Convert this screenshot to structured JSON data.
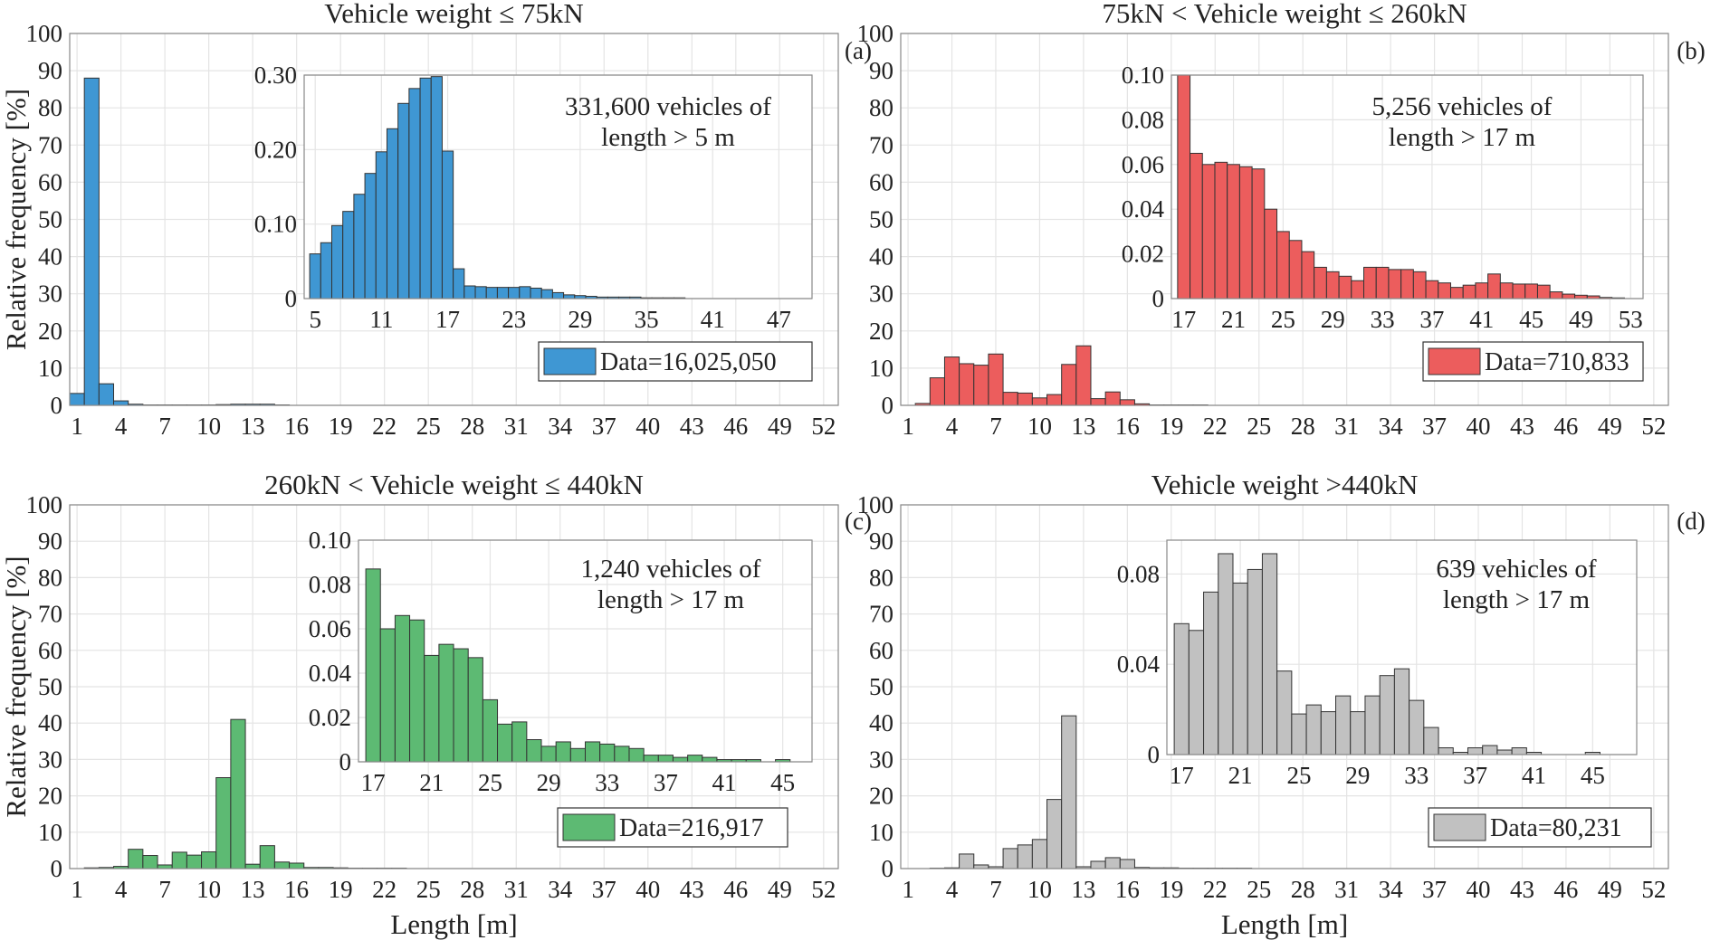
{
  "chart_data": [
    {
      "type": "bar",
      "panel": "(a)",
      "title": "Vehicle weight ≤ 75kN",
      "xlabel": "",
      "ylabel": "Relative frequency [%]",
      "x": [
        1,
        2,
        3,
        4,
        5,
        6,
        7,
        8,
        9,
        10,
        11,
        12,
        13,
        14,
        15,
        16,
        17,
        18,
        19,
        20,
        21,
        22,
        23,
        24,
        25,
        26,
        27,
        28,
        29,
        30,
        31,
        32,
        33,
        34,
        35,
        36,
        37,
        38,
        39,
        40,
        41,
        42,
        43,
        44,
        45,
        46,
        47,
        48,
        49,
        50,
        51,
        52
      ],
      "values": [
        3.2,
        88,
        5.8,
        1.2,
        0.3,
        0.1,
        0.1,
        0.1,
        0.1,
        0.1,
        0.2,
        0.3,
        0.3,
        0.3,
        0.1,
        0,
        0,
        0,
        0,
        0,
        0,
        0,
        0,
        0,
        0,
        0,
        0,
        0,
        0,
        0,
        0,
        0,
        0,
        0,
        0,
        0,
        0,
        0,
        0,
        0,
        0,
        0,
        0,
        0,
        0,
        0,
        0,
        0,
        0,
        0,
        0,
        0
      ],
      "xticks": [
        1,
        4,
        7,
        10,
        13,
        16,
        19,
        22,
        25,
        28,
        31,
        34,
        37,
        40,
        43,
        46,
        49,
        52
      ],
      "yticks": [
        0,
        10,
        20,
        30,
        40,
        50,
        60,
        70,
        80,
        90,
        100
      ],
      "ylim": [
        0,
        100
      ],
      "xlim": [
        0.5,
        53
      ],
      "color": "#3f97d3",
      "grid": true,
      "legend": "Data=16,025,050",
      "legend_position": "bottom-right",
      "inset": {
        "annotation_lines": [
          "331,600 vehicles of",
          "length > 5 m"
        ],
        "x": [
          5,
          6,
          7,
          8,
          9,
          10,
          11,
          12,
          13,
          14,
          15,
          16,
          17,
          18,
          19,
          20,
          21,
          22,
          23,
          24,
          25,
          26,
          27,
          28,
          29,
          30,
          31,
          32,
          33,
          34,
          35,
          36,
          37,
          38,
          39,
          40,
          41,
          42,
          43,
          44,
          45,
          46,
          47,
          48
        ],
        "values": [
          0.06,
          0.075,
          0.098,
          0.117,
          0.14,
          0.168,
          0.197,
          0.228,
          0.262,
          0.282,
          0.296,
          0.298,
          0.198,
          0.04,
          0.017,
          0.016,
          0.015,
          0.015,
          0.015,
          0.016,
          0.014,
          0.012,
          0.008,
          0.005,
          0.004,
          0.003,
          0.002,
          0.002,
          0.002,
          0.002,
          0.001,
          0.001,
          0.001,
          0.001,
          0,
          0,
          0,
          0,
          0,
          0,
          0,
          0,
          0,
          0
        ],
        "xticks": [
          5,
          11,
          17,
          23,
          29,
          35,
          41,
          47
        ],
        "yticks": [
          0,
          0.1,
          0.2,
          0.3
        ],
        "ytick_labels": [
          "0",
          "0.10",
          "0.20",
          "0.30"
        ],
        "ylim": [
          0,
          0.3
        ],
        "xlim": [
          4,
          50
        ]
      }
    },
    {
      "type": "bar",
      "panel": "(b)",
      "title": "75kN < Vehicle weight ≤ 260kN",
      "xlabel": "",
      "ylabel": "",
      "x": [
        1,
        2,
        3,
        4,
        5,
        6,
        7,
        8,
        9,
        10,
        11,
        12,
        13,
        14,
        15,
        16,
        17,
        18,
        19,
        20,
        21,
        22,
        23,
        24,
        25,
        26,
        27,
        28,
        29,
        30,
        31,
        32,
        33,
        34,
        35,
        36,
        37,
        38,
        39,
        40,
        41,
        42,
        43,
        44,
        45,
        46,
        47,
        48,
        49,
        50,
        51,
        52
      ],
      "values": [
        0,
        0.5,
        7.4,
        13,
        11.2,
        10.8,
        13.8,
        3.5,
        3.3,
        2,
        2.9,
        11,
        16,
        1.8,
        3.6,
        1.5,
        0.4,
        0.1,
        0.1,
        0.1,
        0.1,
        0,
        0,
        0,
        0,
        0,
        0,
        0,
        0,
        0,
        0,
        0,
        0,
        0,
        0,
        0,
        0,
        0,
        0,
        0,
        0,
        0,
        0,
        0,
        0,
        0,
        0,
        0,
        0,
        0,
        0,
        0
      ],
      "xticks": [
        1,
        4,
        7,
        10,
        13,
        16,
        19,
        22,
        25,
        28,
        31,
        34,
        37,
        40,
        43,
        46,
        49,
        52
      ],
      "yticks": [
        0,
        10,
        20,
        30,
        40,
        50,
        60,
        70,
        80,
        90,
        100
      ],
      "ylim": [
        0,
        100
      ],
      "xlim": [
        0.5,
        53
      ],
      "color": "#ec5d5d",
      "grid": true,
      "legend": "Data=710,833",
      "legend_position": "bottom-right",
      "inset": {
        "annotation_lines": [
          "5,256 vehicles of",
          "length > 17 m"
        ],
        "x": [
          17,
          18,
          19,
          20,
          21,
          22,
          23,
          24,
          25,
          26,
          27,
          28,
          29,
          30,
          31,
          32,
          33,
          34,
          35,
          36,
          37,
          38,
          39,
          40,
          41,
          42,
          43,
          44,
          45,
          46,
          47,
          48,
          49,
          50,
          51,
          52
        ],
        "values": [
          0.1,
          0.065,
          0.06,
          0.061,
          0.06,
          0.059,
          0.058,
          0.04,
          0.03,
          0.026,
          0.021,
          0.014,
          0.012,
          0.01,
          0.008,
          0.014,
          0.014,
          0.013,
          0.013,
          0.012,
          0.008,
          0.007,
          0.005,
          0.006,
          0.007,
          0.011,
          0.007,
          0.0065,
          0.0065,
          0.006,
          0.003,
          0.002,
          0.0015,
          0.0012,
          0.0005,
          0.0003
        ],
        "xticks": [
          17,
          21,
          25,
          29,
          33,
          37,
          41,
          45,
          49,
          53
        ],
        "yticks": [
          0,
          0.02,
          0.04,
          0.06,
          0.08,
          0.1
        ],
        "ytick_labels": [
          "0",
          "0.02",
          "0.04",
          "0.06",
          "0.08",
          "0.10"
        ],
        "ylim": [
          0,
          0.1
        ],
        "xlim": [
          16,
          54
        ]
      }
    },
    {
      "type": "bar",
      "panel": "(c)",
      "title": "260kN < Vehicle weight ≤ 440kN",
      "xlabel": "Length [m]",
      "ylabel": "Relative frequency [%]",
      "x": [
        1,
        2,
        3,
        4,
        5,
        6,
        7,
        8,
        9,
        10,
        11,
        12,
        13,
        14,
        15,
        16,
        17,
        18,
        19,
        20,
        21,
        22,
        23,
        24,
        25,
        26,
        27,
        28,
        29,
        30,
        31,
        32,
        33,
        34,
        35,
        36,
        37,
        38,
        39,
        40,
        41,
        42,
        43,
        44,
        45,
        46,
        47,
        48,
        49,
        50,
        51,
        52
      ],
      "values": [
        0,
        0.2,
        0.3,
        0.6,
        5.3,
        3.6,
        1,
        4.5,
        3.7,
        4.6,
        25,
        41,
        1.2,
        6.3,
        1.8,
        1.5,
        0.3,
        0.3,
        0.2,
        0.1,
        0.1,
        0.1,
        0.1,
        0,
        0,
        0,
        0,
        0,
        0,
        0,
        0,
        0,
        0,
        0,
        0,
        0,
        0,
        0,
        0,
        0,
        0,
        0,
        0,
        0,
        0,
        0,
        0,
        0,
        0,
        0,
        0,
        0
      ],
      "xticks": [
        1,
        4,
        7,
        10,
        13,
        16,
        19,
        22,
        25,
        28,
        31,
        34,
        37,
        40,
        43,
        46,
        49,
        52
      ],
      "yticks": [
        0,
        10,
        20,
        30,
        40,
        50,
        60,
        70,
        80,
        90,
        100
      ],
      "ylim": [
        0,
        100
      ],
      "xlim": [
        0.5,
        53
      ],
      "color": "#5dba73",
      "grid": true,
      "legend": "Data=216,917",
      "legend_position": "bottom-right",
      "inset": {
        "annotation_lines": [
          "1,240 vehicles of",
          "length > 17 m"
        ],
        "x": [
          17,
          18,
          19,
          20,
          21,
          22,
          23,
          24,
          25,
          26,
          27,
          28,
          29,
          30,
          31,
          32,
          33,
          34,
          35,
          36,
          37,
          38,
          39,
          40,
          41,
          42,
          43,
          44,
          45,
          46
        ],
        "values": [
          0.087,
          0.06,
          0.066,
          0.064,
          0.048,
          0.053,
          0.051,
          0.047,
          0.028,
          0.017,
          0.018,
          0.01,
          0.007,
          0.009,
          0.006,
          0.009,
          0.008,
          0.007,
          0.006,
          0.003,
          0.003,
          0.002,
          0.003,
          0.002,
          0.001,
          0.001,
          0.001,
          0,
          0.001,
          0
        ],
        "xticks": [
          17,
          21,
          25,
          29,
          33,
          37,
          41,
          45
        ],
        "yticks": [
          0,
          0.02,
          0.04,
          0.06,
          0.08,
          0.1
        ],
        "ytick_labels": [
          "0",
          "0.02",
          "0.04",
          "0.06",
          "0.08",
          "0.10"
        ],
        "ylim": [
          0,
          0.1
        ],
        "xlim": [
          16,
          47
        ]
      }
    },
    {
      "type": "bar",
      "panel": "(d)",
      "title": "Vehicle weight >440kN",
      "xlabel": "Length [m]",
      "ylabel": "",
      "x": [
        1,
        2,
        3,
        4,
        5,
        6,
        7,
        8,
        9,
        10,
        11,
        12,
        13,
        14,
        15,
        16,
        17,
        18,
        19,
        20,
        21,
        22,
        23,
        24,
        25,
        26,
        27,
        28,
        29,
        30,
        31,
        32,
        33,
        34,
        35,
        36,
        37,
        38,
        39,
        40,
        41,
        42,
        43,
        44,
        45,
        46,
        47,
        48,
        49,
        50,
        51,
        52
      ],
      "values": [
        0,
        0,
        0.1,
        0.2,
        4,
        1,
        0.5,
        5.5,
        6.5,
        8,
        19,
        42,
        0.5,
        2,
        3,
        2.5,
        0.3,
        0.2,
        0.2,
        0.1,
        0.1,
        0.1,
        0.1,
        0.1,
        0,
        0,
        0,
        0,
        0,
        0,
        0,
        0,
        0,
        0,
        0,
        0,
        0,
        0,
        0,
        0,
        0,
        0,
        0,
        0,
        0,
        0,
        0,
        0,
        0,
        0,
        0,
        0
      ],
      "xticks": [
        1,
        4,
        7,
        10,
        13,
        16,
        19,
        22,
        25,
        28,
        31,
        34,
        37,
        40,
        43,
        46,
        49,
        52
      ],
      "yticks": [
        0,
        10,
        20,
        30,
        40,
        50,
        60,
        70,
        80,
        90,
        100
      ],
      "ylim": [
        0,
        100
      ],
      "xlim": [
        0.5,
        53
      ],
      "color": "#c1c1c1",
      "grid": true,
      "legend": "Data=80,231",
      "legend_position": "bottom-right",
      "inset": {
        "annotation_lines": [
          "639 vehicles of",
          "length > 17 m"
        ],
        "x": [
          17,
          18,
          19,
          20,
          21,
          22,
          23,
          24,
          25,
          26,
          27,
          28,
          29,
          30,
          31,
          32,
          33,
          34,
          35,
          36,
          37,
          38,
          39,
          40,
          41,
          42,
          43,
          44,
          45,
          46
        ],
        "values": [
          0.058,
          0.055,
          0.072,
          0.089,
          0.076,
          0.082,
          0.089,
          0.037,
          0.018,
          0.022,
          0.019,
          0.026,
          0.019,
          0.026,
          0.035,
          0.038,
          0.024,
          0.012,
          0.003,
          0.001,
          0.003,
          0.004,
          0.002,
          0.003,
          0.001,
          0,
          0,
          0,
          0.001,
          0
        ],
        "xticks": [
          17,
          21,
          25,
          29,
          33,
          37,
          41,
          45
        ],
        "yticks": [
          0,
          0.04,
          0.08
        ],
        "ytick_labels": [
          "0",
          "0.04",
          "0.08"
        ],
        "ylim": [
          0,
          0.095
        ],
        "xlim": [
          16,
          48
        ]
      }
    }
  ]
}
